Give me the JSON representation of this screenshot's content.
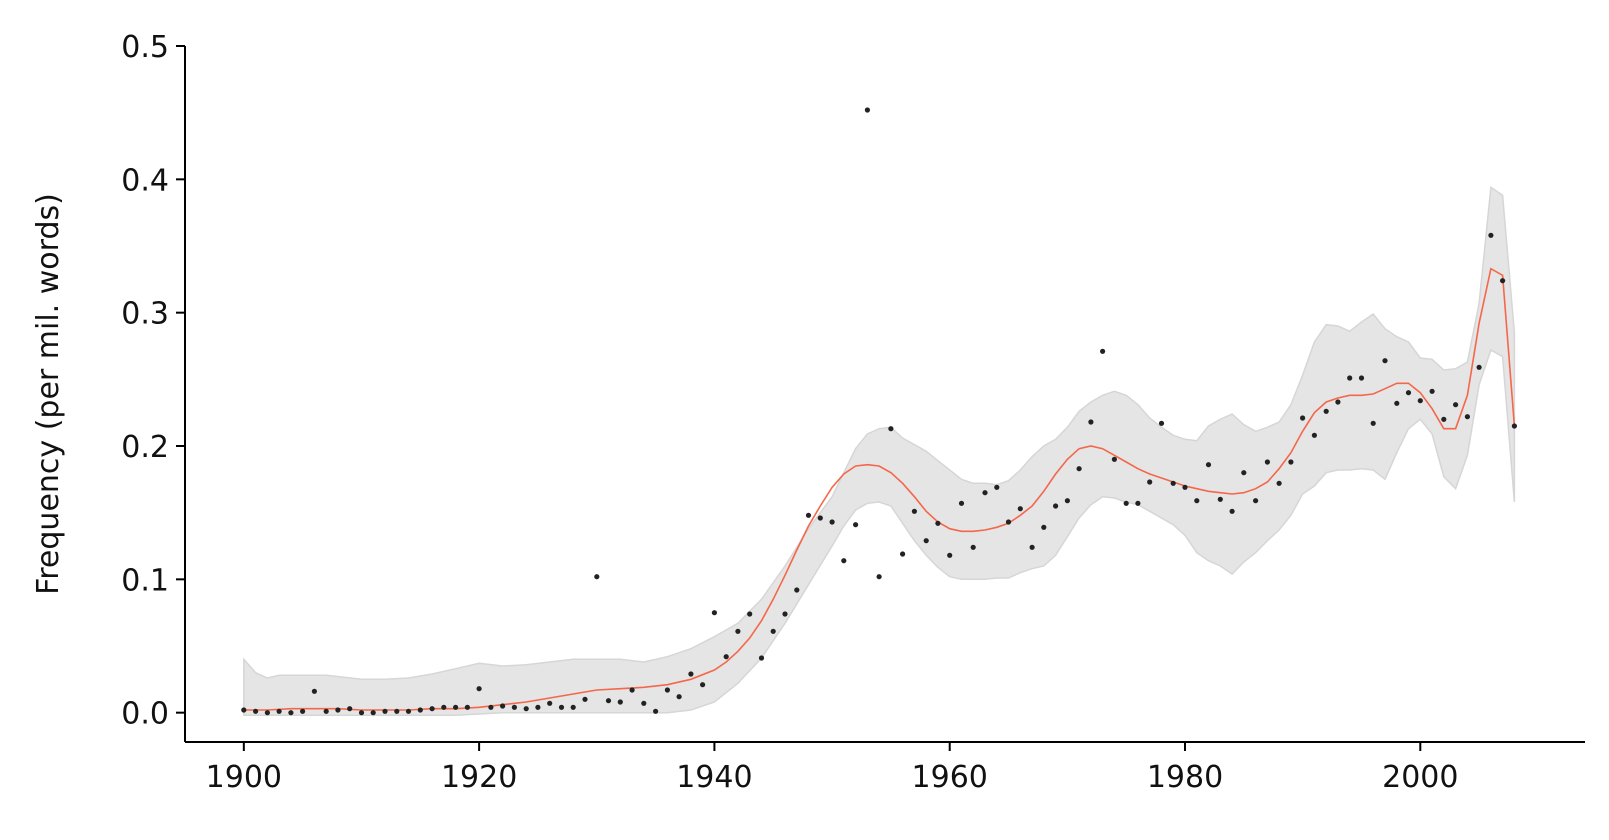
{
  "chart_data": {
    "type": "scatter",
    "title": "",
    "xlabel": "",
    "ylabel": "Frequency (per mil. words)",
    "xlim": [
      1895,
      2014
    ],
    "ylim": [
      -0.022,
      0.5
    ],
    "xticks": [
      1900,
      1920,
      1940,
      1960,
      1980,
      2000
    ],
    "yticks": [
      0.0,
      0.1,
      0.2,
      0.3,
      0.4,
      0.5
    ],
    "xtick_labels": [
      "1900",
      "1920",
      "1940",
      "1960",
      "1980",
      "2000"
    ],
    "ytick_labels": [
      "0.0",
      "0.1",
      "0.2",
      "0.3",
      "0.4",
      "0.5"
    ],
    "grid": false,
    "colors": {
      "points": "#222222",
      "trend": "#f4674a",
      "band": "#e5e5e5",
      "band_edge": "#d6d6d6",
      "axes": "#000000"
    },
    "series": [
      {
        "kind": "points",
        "x": [
          1900,
          1901,
          1902,
          1903,
          1904,
          1905,
          1906,
          1907,
          1908,
          1909,
          1910,
          1911,
          1912,
          1913,
          1914,
          1915,
          1916,
          1917,
          1918,
          1919,
          1920,
          1921,
          1922,
          1923,
          1924,
          1925,
          1926,
          1927,
          1928,
          1929,
          1930,
          1931,
          1932,
          1933,
          1934,
          1935,
          1936,
          1937,
          1938,
          1939,
          1940,
          1941,
          1942,
          1943,
          1944,
          1945,
          1946,
          1947,
          1948,
          1949,
          1950,
          1951,
          1952,
          1953,
          1954,
          1955,
          1956,
          1957,
          1958,
          1959,
          1960,
          1961,
          1962,
          1963,
          1964,
          1965,
          1966,
          1967,
          1968,
          1969,
          1970,
          1971,
          1972,
          1973,
          1974,
          1975,
          1976,
          1977,
          1978,
          1979,
          1980,
          1981,
          1982,
          1983,
          1984,
          1985,
          1986,
          1987,
          1988,
          1989,
          1990,
          1991,
          1992,
          1993,
          1994,
          1995,
          1996,
          1997,
          1998,
          1999,
          2000,
          2001,
          2002,
          2003,
          2004,
          2005,
          2006,
          2007,
          2008
        ],
        "y": [
          0.002,
          0.001,
          0.0,
          0.001,
          0.0,
          0.001,
          0.016,
          0.001,
          0.002,
          0.003,
          0.0,
          0.0,
          0.001,
          0.001,
          0.001,
          0.002,
          0.003,
          0.004,
          0.004,
          0.004,
          0.018,
          0.004,
          0.005,
          0.004,
          0.003,
          0.004,
          0.007,
          0.004,
          0.004,
          0.01,
          0.102,
          0.009,
          0.008,
          0.017,
          0.007,
          0.001,
          0.017,
          0.012,
          0.029,
          0.021,
          0.075,
          0.042,
          0.061,
          0.074,
          0.041,
          0.061,
          0.074,
          0.092,
          0.148,
          0.146,
          0.143,
          0.114,
          0.141,
          0.452,
          0.102,
          0.213,
          0.119,
          0.151,
          0.129,
          0.142,
          0.118,
          0.157,
          0.124,
          0.165,
          0.169,
          0.143,
          0.153,
          0.124,
          0.139,
          0.155,
          0.159,
          0.183,
          0.218,
          0.271,
          0.19,
          0.157,
          0.157,
          0.173,
          0.217,
          0.172,
          0.169,
          0.159,
          0.186,
          0.16,
          0.151,
          0.18,
          0.159,
          0.188,
          0.172,
          0.188,
          0.221,
          0.208,
          0.226,
          0.233,
          0.251,
          0.251,
          0.217,
          0.264,
          0.232,
          0.24,
          0.234,
          0.241,
          0.22,
          0.231,
          0.222,
          0.259,
          0.358,
          0.324,
          0.215
        ]
      },
      {
        "kind": "trend",
        "x": [
          1900,
          1902,
          1904,
          1906,
          1908,
          1910,
          1912,
          1914,
          1916,
          1918,
          1920,
          1922,
          1924,
          1926,
          1928,
          1930,
          1932,
          1934,
          1936,
          1938,
          1940,
          1941,
          1942,
          1943,
          1944,
          1945,
          1946,
          1947,
          1948,
          1949,
          1950,
          1951,
          1952,
          1953,
          1954,
          1955,
          1956,
          1957,
          1958,
          1959,
          1960,
          1961,
          1962,
          1963,
          1964,
          1965,
          1966,
          1967,
          1968,
          1969,
          1970,
          1971,
          1972,
          1973,
          1974,
          1975,
          1976,
          1977,
          1978,
          1979,
          1980,
          1981,
          1982,
          1983,
          1984,
          1985,
          1986,
          1987,
          1988,
          1989,
          1990,
          1991,
          1992,
          1993,
          1994,
          1995,
          1996,
          1997,
          1998,
          1999,
          2000,
          2001,
          2002,
          2003,
          2004,
          2005,
          2006,
          2007,
          2008
        ],
        "y": [
          0.002,
          0.002,
          0.003,
          0.003,
          0.003,
          0.002,
          0.002,
          0.002,
          0.003,
          0.003,
          0.004,
          0.006,
          0.008,
          0.011,
          0.014,
          0.017,
          0.018,
          0.019,
          0.021,
          0.025,
          0.032,
          0.038,
          0.046,
          0.056,
          0.069,
          0.085,
          0.103,
          0.122,
          0.14,
          0.155,
          0.169,
          0.179,
          0.185,
          0.186,
          0.185,
          0.18,
          0.172,
          0.162,
          0.151,
          0.143,
          0.138,
          0.136,
          0.136,
          0.137,
          0.139,
          0.142,
          0.148,
          0.155,
          0.166,
          0.179,
          0.19,
          0.198,
          0.2,
          0.198,
          0.193,
          0.188,
          0.183,
          0.179,
          0.176,
          0.173,
          0.17,
          0.168,
          0.166,
          0.165,
          0.164,
          0.165,
          0.168,
          0.173,
          0.183,
          0.195,
          0.211,
          0.225,
          0.233,
          0.236,
          0.238,
          0.238,
          0.239,
          0.243,
          0.247,
          0.247,
          0.24,
          0.228,
          0.213,
          0.213,
          0.238,
          0.292,
          0.333,
          0.328,
          0.215
        ]
      },
      {
        "kind": "confidence_band",
        "x": [
          1900,
          1901,
          1902,
          1903,
          1905,
          1907,
          1910,
          1912,
          1914,
          1916,
          1918,
          1920,
          1922,
          1924,
          1926,
          1928,
          1930,
          1932,
          1934,
          1936,
          1938,
          1940,
          1942,
          1944,
          1946,
          1948,
          1950,
          1951,
          1952,
          1953,
          1954,
          1955,
          1956,
          1957,
          1958,
          1959,
          1960,
          1961,
          1962,
          1963,
          1964,
          1965,
          1966,
          1967,
          1968,
          1969,
          1970,
          1971,
          1972,
          1973,
          1974,
          1975,
          1976,
          1977,
          1978,
          1979,
          1980,
          1981,
          1982,
          1983,
          1984,
          1985,
          1986,
          1987,
          1988,
          1989,
          1990,
          1991,
          1992,
          1993,
          1994,
          1995,
          1996,
          1997,
          1998,
          1999,
          2000,
          2001,
          2002,
          2003,
          2004,
          2005,
          2006,
          2007,
          2008
        ],
        "upper": [
          0.04,
          0.03,
          0.026,
          0.028,
          0.028,
          0.028,
          0.025,
          0.025,
          0.026,
          0.029,
          0.033,
          0.037,
          0.035,
          0.036,
          0.038,
          0.04,
          0.04,
          0.04,
          0.038,
          0.042,
          0.048,
          0.057,
          0.067,
          0.085,
          0.11,
          0.138,
          0.162,
          0.18,
          0.198,
          0.209,
          0.213,
          0.214,
          0.206,
          0.201,
          0.196,
          0.189,
          0.182,
          0.175,
          0.172,
          0.172,
          0.171,
          0.174,
          0.182,
          0.192,
          0.2,
          0.205,
          0.214,
          0.226,
          0.233,
          0.238,
          0.241,
          0.238,
          0.231,
          0.221,
          0.214,
          0.208,
          0.205,
          0.204,
          0.215,
          0.22,
          0.224,
          0.216,
          0.211,
          0.214,
          0.218,
          0.231,
          0.253,
          0.278,
          0.291,
          0.29,
          0.286,
          0.293,
          0.299,
          0.288,
          0.282,
          0.278,
          0.266,
          0.265,
          0.257,
          0.258,
          0.263,
          0.307,
          0.394,
          0.388,
          0.285
        ]
      },
      {
        "kind": "confidence_band_lower",
        "x": [
          1900,
          1901,
          1902,
          1903,
          1905,
          1907,
          1910,
          1912,
          1914,
          1916,
          1918,
          1920,
          1922,
          1924,
          1926,
          1928,
          1930,
          1932,
          1934,
          1936,
          1938,
          1940,
          1942,
          1944,
          1946,
          1948,
          1950,
          1951,
          1952,
          1953,
          1954,
          1955,
          1956,
          1957,
          1958,
          1959,
          1960,
          1961,
          1962,
          1963,
          1964,
          1965,
          1966,
          1967,
          1968,
          1969,
          1970,
          1971,
          1972,
          1973,
          1974,
          1975,
          1976,
          1977,
          1978,
          1979,
          1980,
          1981,
          1982,
          1983,
          1984,
          1985,
          1986,
          1987,
          1988,
          1989,
          1990,
          1991,
          1992,
          1993,
          1994,
          1995,
          1996,
          1997,
          1998,
          1999,
          2000,
          2001,
          2002,
          2003,
          2004,
          2005,
          2006,
          2007,
          2008
        ],
        "lower": [
          -0.002,
          -0.002,
          -0.002,
          -0.002,
          -0.002,
          -0.002,
          -0.002,
          -0.002,
          -0.002,
          -0.002,
          -0.002,
          -0.001,
          0.0,
          0.0,
          0.0,
          0.0,
          0.0,
          0.0,
          0.0,
          0.0,
          0.002,
          0.008,
          0.022,
          0.041,
          0.067,
          0.096,
          0.125,
          0.14,
          0.152,
          0.157,
          0.158,
          0.155,
          0.142,
          0.129,
          0.118,
          0.109,
          0.102,
          0.1,
          0.1,
          0.1,
          0.101,
          0.101,
          0.105,
          0.108,
          0.11,
          0.118,
          0.132,
          0.146,
          0.156,
          0.162,
          0.161,
          0.158,
          0.156,
          0.151,
          0.146,
          0.141,
          0.133,
          0.12,
          0.114,
          0.11,
          0.104,
          0.113,
          0.12,
          0.129,
          0.137,
          0.148,
          0.164,
          0.17,
          0.18,
          0.182,
          0.182,
          0.183,
          0.182,
          0.175,
          0.195,
          0.213,
          0.22,
          0.209,
          0.177,
          0.168,
          0.193,
          0.246,
          0.272,
          0.267,
          0.158
        ]
      }
    ]
  }
}
